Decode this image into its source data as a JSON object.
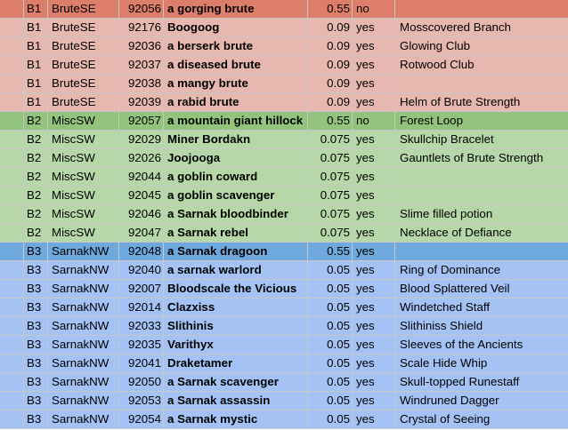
{
  "rows": [
    {
      "band": "b1",
      "hl": true,
      "bucket": "B1",
      "zone": "BruteSE",
      "id": "92056",
      "name": "a gorging brute",
      "rate": "0.55",
      "flag": "no",
      "item": ""
    },
    {
      "band": "b1",
      "hl": false,
      "bucket": "B1",
      "zone": "BruteSE",
      "id": "92176",
      "name": "Boogoog",
      "rate": "0.09",
      "flag": "yes",
      "item": "Mosscovered Branch"
    },
    {
      "band": "b1",
      "hl": false,
      "bucket": "B1",
      "zone": "BruteSE",
      "id": "92036",
      "name": "a berserk brute",
      "rate": "0.09",
      "flag": "yes",
      "item": "Glowing Club"
    },
    {
      "band": "b1",
      "hl": false,
      "bucket": "B1",
      "zone": "BruteSE",
      "id": "92037",
      "name": "a diseased brute",
      "rate": "0.09",
      "flag": "yes",
      "item": "Rotwood Club"
    },
    {
      "band": "b1",
      "hl": false,
      "bucket": "B1",
      "zone": "BruteSE",
      "id": "92038",
      "name": "a mangy brute",
      "rate": "0.09",
      "flag": "yes",
      "item": ""
    },
    {
      "band": "b1",
      "hl": false,
      "bucket": "B1",
      "zone": "BruteSE",
      "id": "92039",
      "name": "a rabid brute",
      "rate": "0.09",
      "flag": "yes",
      "item": "Helm of Brute Strength"
    },
    {
      "band": "b2",
      "hl": true,
      "bucket": "B2",
      "zone": "MiscSW",
      "id": "92057",
      "name": "a mountain giant hillock",
      "rate": "0.55",
      "flag": "no",
      "item": "Forest Loop"
    },
    {
      "band": "b2",
      "hl": false,
      "bucket": "B2",
      "zone": "MiscSW",
      "id": "92029",
      "name": "Miner Bordakn",
      "rate": "0.075",
      "flag": "yes",
      "item": "Skullchip Bracelet"
    },
    {
      "band": "b2",
      "hl": false,
      "bucket": "B2",
      "zone": "MiscSW",
      "id": "92026",
      "name": "Joojooga",
      "rate": "0.075",
      "flag": "yes",
      "item": "Gauntlets of Brute Strength"
    },
    {
      "band": "b2",
      "hl": false,
      "bucket": "B2",
      "zone": "MiscSW",
      "id": "92044",
      "name": "a goblin coward",
      "rate": "0.075",
      "flag": "yes",
      "item": ""
    },
    {
      "band": "b2",
      "hl": false,
      "bucket": "B2",
      "zone": "MiscSW",
      "id": "92045",
      "name": "a goblin scavenger",
      "rate": "0.075",
      "flag": "yes",
      "item": ""
    },
    {
      "band": "b2",
      "hl": false,
      "bucket": "B2",
      "zone": "MiscSW",
      "id": "92046",
      "name": "a Sarnak bloodbinder",
      "rate": "0.075",
      "flag": "yes",
      "item": "Slime filled potion"
    },
    {
      "band": "b2",
      "hl": false,
      "bucket": "B2",
      "zone": "MiscSW",
      "id": "92047",
      "name": "a Sarnak rebel",
      "rate": "0.075",
      "flag": "yes",
      "item": "Necklace of Defiance"
    },
    {
      "band": "b3",
      "hl": true,
      "bucket": "B3",
      "zone": "SarnakNW",
      "id": "92048",
      "name": "a Sarnak dragoon",
      "rate": "0.55",
      "flag": "yes",
      "item": ""
    },
    {
      "band": "b3",
      "hl": false,
      "bucket": "B3",
      "zone": "SarnakNW",
      "id": "92040",
      "name": "a sarnak warlord",
      "rate": "0.05",
      "flag": "yes",
      "item": "Ring of Dominance"
    },
    {
      "band": "b3",
      "hl": false,
      "bucket": "B3",
      "zone": "SarnakNW",
      "id": "92007",
      "name": "Bloodscale the Vicious",
      "rate": "0.05",
      "flag": "yes",
      "item": "Blood Splattered Veil"
    },
    {
      "band": "b3",
      "hl": false,
      "bucket": "B3",
      "zone": "SarnakNW",
      "id": "92014",
      "name": "Clazxiss",
      "rate": "0.05",
      "flag": "yes",
      "item": "Windetched Staff"
    },
    {
      "band": "b3",
      "hl": false,
      "bucket": "B3",
      "zone": "SarnakNW",
      "id": "92033",
      "name": "Slithinis",
      "rate": "0.05",
      "flag": "yes",
      "item": "Slithiniss Shield"
    },
    {
      "band": "b3",
      "hl": false,
      "bucket": "B3",
      "zone": "SarnakNW",
      "id": "92035",
      "name": "Varithyx",
      "rate": "0.05",
      "flag": "yes",
      "item": "Sleeves of the Ancients"
    },
    {
      "band": "b3",
      "hl": false,
      "bucket": "B3",
      "zone": "SarnakNW",
      "id": "92041",
      "name": "Draketamer",
      "rate": "0.05",
      "flag": "yes",
      "item": "Scale Hide Whip"
    },
    {
      "band": "b3",
      "hl": false,
      "bucket": "B3",
      "zone": "SarnakNW",
      "id": "92050",
      "name": "a Sarnak scavenger",
      "rate": "0.05",
      "flag": "yes",
      "item": "Skull-topped Runestaff"
    },
    {
      "band": "b3",
      "hl": false,
      "bucket": "B3",
      "zone": "SarnakNW",
      "id": "92053",
      "name": "a Sarnak assassin",
      "rate": "0.05",
      "flag": "yes",
      "item": "Windruned Dagger"
    },
    {
      "band": "b3",
      "hl": false,
      "bucket": "B3",
      "zone": "SarnakNW",
      "id": "92054",
      "name": "a Sarnak mystic",
      "rate": "0.05",
      "flag": "yes",
      "item": "Crystal of Seeing"
    }
  ]
}
